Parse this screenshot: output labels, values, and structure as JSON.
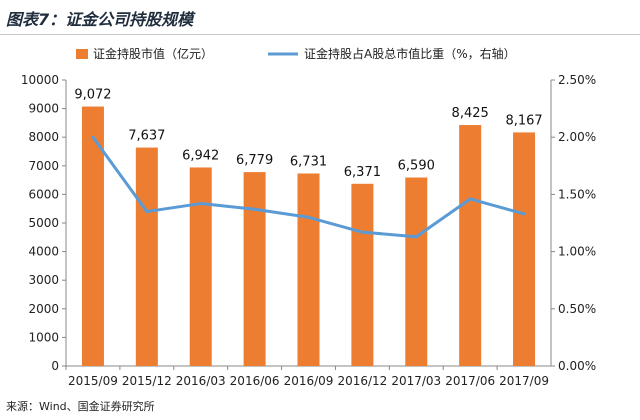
{
  "chart_data": {
    "type": "bar",
    "title": "图表7：证金公司持股规模",
    "categories": [
      "2015/09",
      "2015/12",
      "2016/03",
      "2016/06",
      "2016/09",
      "2016/12",
      "2017/03",
      "2017/06",
      "2017/09"
    ],
    "series": [
      {
        "name": "证金持股市值（亿元）",
        "type": "bar",
        "axis": "left",
        "color": "#ed7d31",
        "values": [
          9072,
          7637,
          6942,
          6779,
          6731,
          6371,
          6590,
          8425,
          8167
        ],
        "labels": [
          "9,072",
          "7,637",
          "6,942",
          "6,779",
          "6,731",
          "6,371",
          "6,590",
          "8,425",
          "8,167"
        ]
      },
      {
        "name": "证金持股占A股总市值比重（%，右轴）",
        "type": "line",
        "axis": "right",
        "color": "#5b9bd5",
        "values": [
          2.0,
          1.35,
          1.42,
          1.37,
          1.3,
          1.17,
          1.13,
          1.46,
          1.33
        ]
      }
    ],
    "yleft": {
      "min": 0,
      "max": 10000,
      "ticks": [
        0,
        1000,
        2000,
        3000,
        4000,
        5000,
        6000,
        7000,
        8000,
        9000,
        10000
      ],
      "tick_labels": [
        "0",
        "1000",
        "2000",
        "3000",
        "4000",
        "5000",
        "6000",
        "7000",
        "8000",
        "9000",
        "10000"
      ]
    },
    "yright": {
      "min": 0,
      "max": 2.5,
      "ticks": [
        0,
        0.5,
        1.0,
        1.5,
        2.0,
        2.5
      ],
      "tick_labels": [
        "0.00%",
        "0.50%",
        "1.00%",
        "1.50%",
        "2.00%",
        "2.50%"
      ]
    },
    "grid": false,
    "legend_position": "top",
    "source": "来源：Wind、国金证券研究所"
  }
}
